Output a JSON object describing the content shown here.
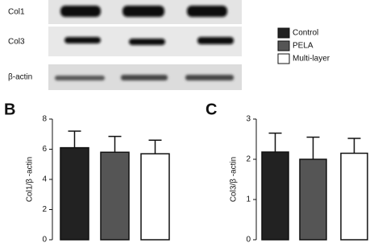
{
  "blot": {
    "labels": [
      "Col1",
      "Col3",
      "β-actin"
    ]
  },
  "legend": [
    {
      "name": "Control",
      "color": "#222222"
    },
    {
      "name": "PELA",
      "color": "#555555"
    },
    {
      "name": "Multi-layer",
      "color": "#ffffff"
    }
  ],
  "chart_data": [
    {
      "type": "bar",
      "panel": "B",
      "ylabel": "Col1/β -actin",
      "ylim": [
        0,
        8
      ],
      "yticks": [
        0,
        2,
        4,
        6,
        8
      ],
      "values": [
        6.1,
        5.8,
        5.7
      ],
      "errors": [
        1.1,
        1.05,
        0.9
      ]
    },
    {
      "type": "bar",
      "panel": "C",
      "ylabel": "Col3/β -actin",
      "ylim": [
        0,
        3
      ],
      "yticks": [
        0,
        1,
        2,
        3
      ],
      "values": [
        2.18,
        2.0,
        2.15
      ],
      "errors": [
        0.47,
        0.55,
        0.37
      ]
    }
  ]
}
